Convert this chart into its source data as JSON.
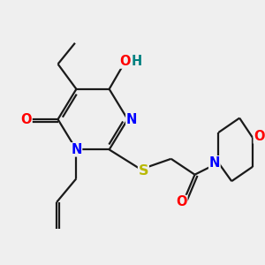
{
  "bg_color": "#efefef",
  "bond_color": "#1a1a1a",
  "bond_width": 1.6,
  "atom_colors": {
    "N": "#0000ff",
    "O": "#ff0000",
    "S": "#b8b800",
    "H": "#008080",
    "C": "#1a1a1a"
  },
  "font_size": 10.5,
  "figsize": [
    3.0,
    3.0
  ],
  "dpi": 100
}
